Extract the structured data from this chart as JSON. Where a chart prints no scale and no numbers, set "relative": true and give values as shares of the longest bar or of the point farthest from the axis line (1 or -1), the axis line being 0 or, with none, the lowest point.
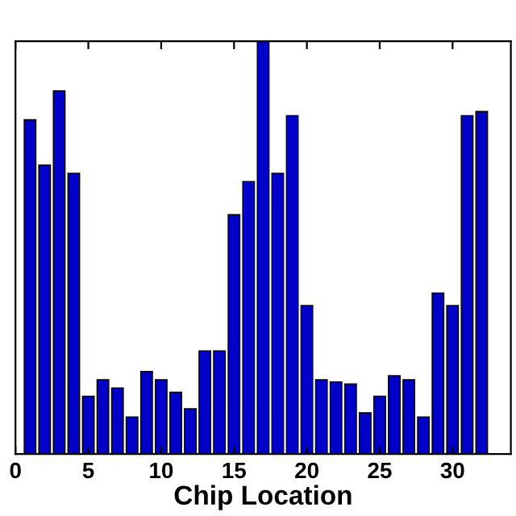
{
  "chart_data": {
    "type": "bar",
    "xlabel": "Chip Location",
    "relative": true,
    "color": "#0000c8",
    "x": [
      1,
      2,
      3,
      4,
      5,
      6,
      7,
      8,
      9,
      10,
      11,
      12,
      13,
      14,
      15,
      16,
      17,
      18,
      19,
      20,
      21,
      22,
      23,
      24,
      25,
      26,
      27,
      28,
      29,
      30,
      31,
      32
    ],
    "values": [
      0.81,
      0.7,
      0.88,
      0.68,
      0.14,
      0.18,
      0.16,
      0.09,
      0.2,
      0.18,
      0.15,
      0.11,
      0.25,
      0.25,
      0.58,
      0.66,
      1.0,
      0.68,
      0.82,
      0.36,
      0.18,
      0.175,
      0.17,
      0.1,
      0.14,
      0.19,
      0.18,
      0.09,
      0.39,
      0.36,
      0.82,
      0.83
    ],
    "xlim": [
      0,
      34
    ],
    "xticks": [
      0,
      5,
      10,
      15,
      20,
      25,
      30
    ],
    "tick_labels": "x",
    "grid": false
  }
}
